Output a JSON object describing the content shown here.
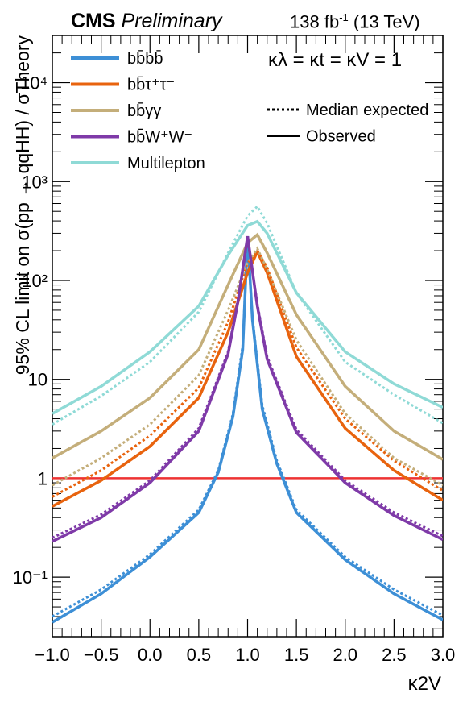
{
  "header": {
    "experiment": "CMS",
    "status": "Preliminary",
    "lumi": "138",
    "lumi_unit": "fb",
    "lumi_exp": "-1",
    "energy": "(13 TeV)"
  },
  "chart_data": {
    "type": "line",
    "title": "",
    "xlabel": "κ2V",
    "ylabel": "95% CL limit on σ(pp → qqHH) / σTheory",
    "xlim": [
      -1.0,
      3.0
    ],
    "ylim": [
      0.025,
      30000
    ],
    "log_y": true,
    "x_ticks": [
      -1.0,
      -0.5,
      0.0,
      0.5,
      1.0,
      1.5,
      2.0,
      2.5,
      3.0
    ],
    "x_tick_labels": [
      "−1.0",
      "−0.5",
      "0.0",
      "0.5",
      "1.0",
      "1.5",
      "2.0",
      "2.5",
      "3.0"
    ],
    "y_ticks": [
      0.1,
      1,
      10,
      100,
      1000,
      10000
    ],
    "y_tick_labels": [
      "10⁻¹",
      "1",
      "10",
      "10²",
      "10³",
      "10⁴"
    ],
    "annotation": "κλ = κt = κV = 1",
    "legend_position": "top",
    "style_legend": [
      {
        "label": "Median expected",
        "dash": "dotted"
      },
      {
        "label": "Observed",
        "dash": "solid"
      }
    ],
    "reference_line": {
      "y": 1,
      "color": "#ee3333"
    },
    "series": [
      {
        "name": "bb̄bb̄",
        "color": "#3d8fd6",
        "observed": {
          "x": [
            -1.0,
            -0.5,
            0.0,
            0.5,
            0.7,
            0.85,
            0.95,
            1.0,
            1.05,
            1.15,
            1.3,
            1.5,
            2.0,
            2.5,
            3.0
          ],
          "y": [
            0.035,
            0.068,
            0.16,
            0.45,
            1.15,
            4.2,
            20,
            280,
            40,
            5,
            1.4,
            0.45,
            0.15,
            0.068,
            0.037
          ]
        },
        "expected": {
          "x": [
            -1.0,
            -0.5,
            0.0,
            0.5,
            0.7,
            0.85,
            0.95,
            1.0,
            1.05,
            1.15,
            1.3,
            1.5,
            2.0,
            2.5,
            3.0
          ],
          "y": [
            0.04,
            0.075,
            0.17,
            0.48,
            1.2,
            4.5,
            22,
            260,
            42,
            5.5,
            1.5,
            0.48,
            0.16,
            0.075,
            0.041
          ]
        }
      },
      {
        "name": "bb̄τ⁺τ⁻",
        "color": "#e8630e",
        "observed": {
          "x": [
            -1.0,
            -0.5,
            0.0,
            0.5,
            0.8,
            1.0,
            1.1,
            1.2,
            1.5,
            2.0,
            2.5,
            3.0
          ],
          "y": [
            0.52,
            0.95,
            2.1,
            6.5,
            30,
            120,
            195,
            120,
            17,
            3.2,
            1.2,
            0.6
          ]
        },
        "expected": {
          "x": [
            -1.0,
            -0.5,
            0.0,
            0.5,
            0.8,
            1.0,
            1.1,
            1.2,
            1.5,
            2.0,
            2.5,
            3.0
          ],
          "y": [
            0.65,
            1.2,
            2.7,
            8.2,
            38,
            150,
            200,
            135,
            21,
            4,
            1.5,
            0.75
          ]
        }
      },
      {
        "name": "bb̄γγ",
        "color": "#c4ae7a",
        "observed": {
          "x": [
            -1.0,
            -0.5,
            0.0,
            0.5,
            0.8,
            1.0,
            1.1,
            1.2,
            1.5,
            2.0,
            2.5,
            3.0
          ],
          "y": [
            1.6,
            3.0,
            6.5,
            20,
            90,
            240,
            290,
            190,
            45,
            8.5,
            3.0,
            1.55
          ]
        },
        "expected": {
          "x": [
            -1.0,
            -0.5,
            0.0,
            0.5,
            0.8,
            1.0,
            1.1,
            1.2,
            1.5,
            2.0,
            2.5,
            3.0
          ],
          "y": [
            0.85,
            1.6,
            3.5,
            11,
            50,
            150,
            210,
            130,
            25,
            4.5,
            1.6,
            0.85
          ]
        }
      },
      {
        "name": "bb̄W⁺W⁻",
        "color": "#7f3aa8",
        "observed": {
          "x": [
            -1.0,
            -0.5,
            0.0,
            0.5,
            0.8,
            0.9,
            1.0,
            1.1,
            1.2,
            1.5,
            2.0,
            2.5,
            3.0
          ],
          "y": [
            0.23,
            0.4,
            0.9,
            3.0,
            18,
            60,
            280,
            55,
            16,
            2.9,
            0.9,
            0.42,
            0.24
          ]
        },
        "expected": {
          "x": [
            -1.0,
            -0.5,
            0.0,
            0.5,
            0.8,
            0.9,
            1.0,
            1.1,
            1.2,
            1.5,
            2.0,
            2.5,
            3.0
          ],
          "y": [
            0.25,
            0.43,
            0.95,
            3.2,
            19,
            63,
            260,
            58,
            17,
            3.1,
            0.95,
            0.45,
            0.26
          ]
        }
      },
      {
        "name": "Multilepton",
        "color": "#8fdad6",
        "observed": {
          "x": [
            -1.0,
            -0.5,
            0.0,
            0.5,
            0.8,
            1.0,
            1.1,
            1.2,
            1.5,
            2.0,
            2.5,
            3.0
          ],
          "y": [
            4.5,
            8.5,
            19,
            55,
            180,
            360,
            395,
            300,
            75,
            19,
            9,
            5.2
          ]
        },
        "expected": {
          "x": [
            -1.0,
            -0.5,
            0.0,
            0.5,
            0.8,
            1.0,
            1.1,
            1.2,
            1.5,
            2.0,
            2.5,
            3.0
          ],
          "y": [
            3.5,
            6.8,
            15,
            48,
            190,
            450,
            560,
            380,
            75,
            15,
            7,
            3.6
          ]
        }
      }
    ]
  }
}
